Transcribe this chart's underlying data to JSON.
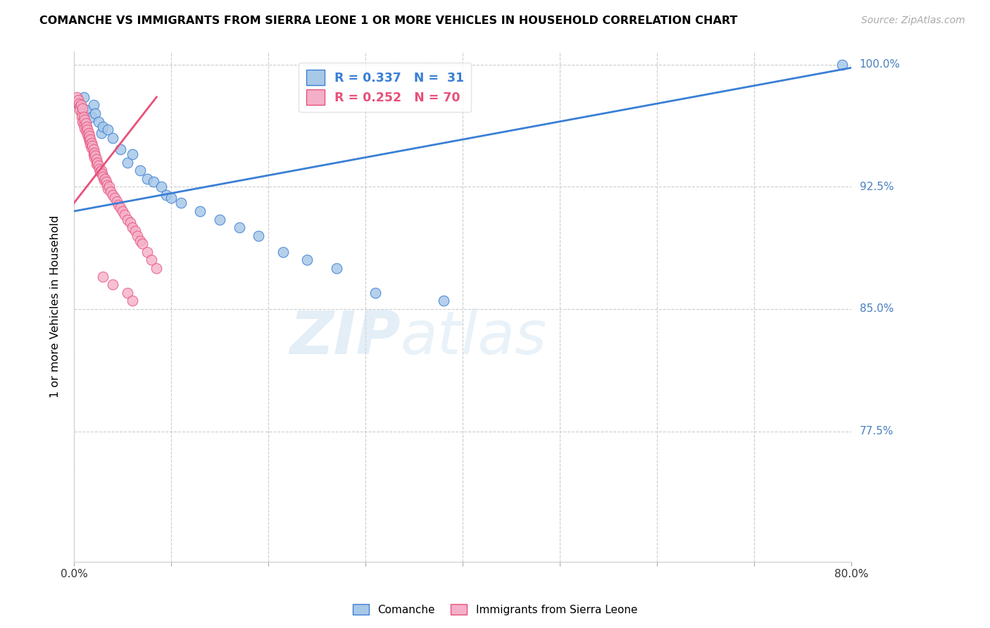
{
  "title": "COMANCHE VS IMMIGRANTS FROM SIERRA LEONE 1 OR MORE VEHICLES IN HOUSEHOLD CORRELATION CHART",
  "source": "Source: ZipAtlas.com",
  "ylabel": "1 or more Vehicles in Household",
  "xmin": 0.0,
  "xmax": 0.8,
  "ymin": 0.695,
  "ymax": 1.008,
  "yticks": [
    0.775,
    0.85,
    0.925,
    1.0
  ],
  "ytick_labels": [
    "77.5%",
    "85.0%",
    "92.5%",
    "100.0%"
  ],
  "xticks": [
    0.0,
    0.1,
    0.2,
    0.3,
    0.4,
    0.5,
    0.6,
    0.7,
    0.8
  ],
  "xtick_labels": [
    "0.0%",
    "",
    "",
    "",
    "",
    "",
    "",
    "",
    "80.0%"
  ],
  "legend1_label": "R = 0.337   N =  31",
  "legend2_label": "R = 0.252   N = 70",
  "color_blue": "#a8c8e8",
  "color_pink": "#f4b0c8",
  "line_blue": "#3a7fd5",
  "line_pink": "#e8507a",
  "watermark_zip": "ZIP",
  "watermark_atlas": "atlas",
  "blue_scatter_x": [
    0.005,
    0.01,
    0.012,
    0.018,
    0.02,
    0.022,
    0.025,
    0.028,
    0.03,
    0.035,
    0.04,
    0.048,
    0.055,
    0.06,
    0.068,
    0.075,
    0.082,
    0.09,
    0.095,
    0.1,
    0.11,
    0.13,
    0.15,
    0.17,
    0.19,
    0.215,
    0.24,
    0.27,
    0.31,
    0.38,
    0.79
  ],
  "blue_scatter_y": [
    0.975,
    0.98,
    0.972,
    0.968,
    0.975,
    0.97,
    0.965,
    0.958,
    0.962,
    0.96,
    0.955,
    0.948,
    0.94,
    0.945,
    0.935,
    0.93,
    0.928,
    0.925,
    0.92,
    0.918,
    0.915,
    0.91,
    0.905,
    0.9,
    0.895,
    0.885,
    0.88,
    0.875,
    0.86,
    0.855,
    1.0
  ],
  "pink_scatter_x": [
    0.003,
    0.004,
    0.005,
    0.006,
    0.006,
    0.007,
    0.008,
    0.008,
    0.009,
    0.009,
    0.01,
    0.01,
    0.011,
    0.011,
    0.012,
    0.012,
    0.013,
    0.014,
    0.014,
    0.015,
    0.015,
    0.016,
    0.016,
    0.017,
    0.017,
    0.018,
    0.018,
    0.019,
    0.02,
    0.02,
    0.021,
    0.021,
    0.022,
    0.023,
    0.023,
    0.024,
    0.025,
    0.026,
    0.027,
    0.028,
    0.029,
    0.03,
    0.031,
    0.032,
    0.033,
    0.034,
    0.035,
    0.036,
    0.038,
    0.04,
    0.042,
    0.044,
    0.046,
    0.048,
    0.05,
    0.052,
    0.055,
    0.058,
    0.06,
    0.063,
    0.065,
    0.068,
    0.07,
    0.075,
    0.08,
    0.085,
    0.03,
    0.04,
    0.055,
    0.06
  ],
  "pink_scatter_y": [
    0.98,
    0.978,
    0.976,
    0.974,
    0.972,
    0.975,
    0.97,
    0.968,
    0.973,
    0.965,
    0.968,
    0.963,
    0.966,
    0.961,
    0.964,
    0.959,
    0.962,
    0.96,
    0.957,
    0.958,
    0.955,
    0.956,
    0.953,
    0.954,
    0.951,
    0.952,
    0.949,
    0.95,
    0.948,
    0.945,
    0.946,
    0.943,
    0.944,
    0.942,
    0.939,
    0.94,
    0.938,
    0.936,
    0.934,
    0.935,
    0.933,
    0.931,
    0.929,
    0.93,
    0.928,
    0.926,
    0.924,
    0.925,
    0.922,
    0.92,
    0.918,
    0.916,
    0.914,
    0.912,
    0.91,
    0.908,
    0.905,
    0.903,
    0.9,
    0.898,
    0.895,
    0.892,
    0.89,
    0.885,
    0.88,
    0.875,
    0.87,
    0.865,
    0.86,
    0.855
  ],
  "blue_line_x0": 0.0,
  "blue_line_x1": 0.8,
  "blue_line_y0": 0.91,
  "blue_line_y1": 0.998,
  "pink_line_x0": 0.0,
  "pink_line_x1": 0.085,
  "pink_line_y0": 0.915,
  "pink_line_y1": 0.98
}
